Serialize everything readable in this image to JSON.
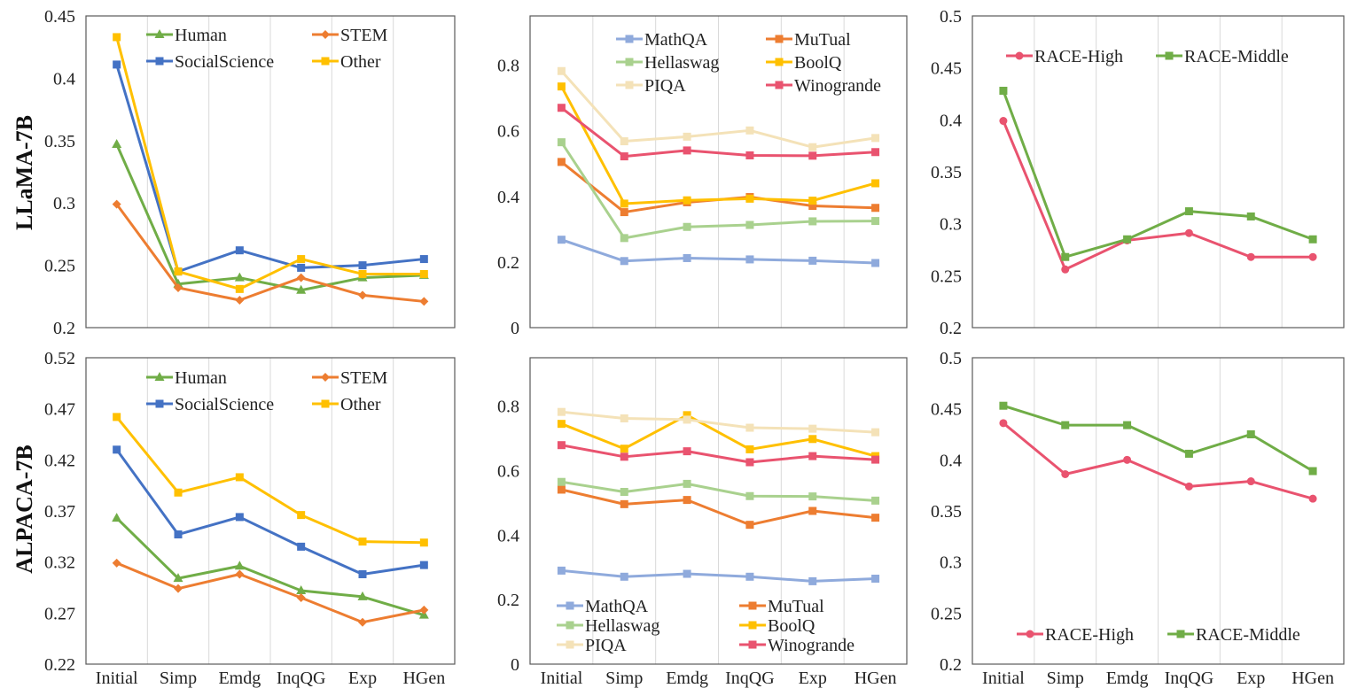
{
  "row_labels": [
    "LLaMA-7B",
    "ALPACA-7B"
  ],
  "chart_data": [
    {
      "id": "llama-mmlu",
      "type": "line",
      "categories": [
        "Initial",
        "Simp",
        "Emdg",
        "InqQG",
        "Exp",
        "HGen"
      ],
      "yticks": [
        "0.2",
        "0.25",
        "0.3",
        "0.35",
        "0.4",
        "0.45"
      ],
      "ylim": [
        0.2,
        0.45
      ],
      "grid": "vertical",
      "legend_placement": "top",
      "series": [
        {
          "name": "Human",
          "color": "#70ad47",
          "marker": "triangle",
          "values": [
            0.347,
            0.235,
            0.24,
            0.23,
            0.24,
            0.242
          ]
        },
        {
          "name": "STEM",
          "color": "#ed7d31",
          "marker": "diamond",
          "values": [
            0.299,
            0.232,
            0.222,
            0.24,
            0.226,
            0.221
          ]
        },
        {
          "name": "SocialScience",
          "color": "#4472c4",
          "marker": "square",
          "values": [
            0.411,
            0.245,
            0.262,
            0.248,
            0.25,
            0.255
          ]
        },
        {
          "name": "Other",
          "color": "#ffc000",
          "marker": "square",
          "values": [
            0.433,
            0.245,
            0.231,
            0.255,
            0.243,
            0.243
          ]
        }
      ]
    },
    {
      "id": "llama-others",
      "type": "line",
      "categories": [
        "Initial",
        "Simp",
        "Emdg",
        "InqQG",
        "Exp",
        "HGen"
      ],
      "yticks": [
        "0",
        "0.2",
        "0.4",
        "0.6",
        "0.8"
      ],
      "ylim": [
        0,
        0.95
      ],
      "grid": "vertical",
      "legend_placement": "top",
      "series": [
        {
          "name": "MathQA",
          "color": "#8faadc",
          "marker": "square",
          "values": [
            0.268,
            0.203,
            0.212,
            0.208,
            0.204,
            0.197
          ]
        },
        {
          "name": "MuTual",
          "color": "#ed7d31",
          "marker": "square",
          "values": [
            0.505,
            0.352,
            0.382,
            0.398,
            0.371,
            0.365
          ]
        },
        {
          "name": "Hellaswag",
          "color": "#a9d18e",
          "marker": "square",
          "values": [
            0.565,
            0.273,
            0.307,
            0.313,
            0.324,
            0.325
          ]
        },
        {
          "name": "BoolQ",
          "color": "#ffc000",
          "marker": "square",
          "values": [
            0.735,
            0.378,
            0.388,
            0.393,
            0.387,
            0.44
          ]
        },
        {
          "name": "PIQA",
          "color": "#f4e2b8",
          "marker": "square",
          "values": [
            0.782,
            0.568,
            0.582,
            0.601,
            0.55,
            0.578
          ]
        },
        {
          "name": "Winogrande",
          "color": "#e9536f",
          "marker": "square",
          "values": [
            0.67,
            0.522,
            0.54,
            0.525,
            0.524,
            0.535
          ]
        }
      ]
    },
    {
      "id": "llama-race",
      "type": "line",
      "categories": [
        "Initial",
        "Simp",
        "Emdg",
        "InqQG",
        "Exp",
        "HGen"
      ],
      "yticks": [
        "0.2",
        "0.25",
        "0.3",
        "0.35",
        "0.4",
        "0.45",
        "0.5"
      ],
      "ylim": [
        0.2,
        0.5
      ],
      "grid": "vertical",
      "legend_placement": "top",
      "series": [
        {
          "name": "RACE-High",
          "color": "#e9536f",
          "marker": "circle",
          "values": [
            0.399,
            0.256,
            0.284,
            0.291,
            0.268,
            0.268
          ]
        },
        {
          "name": "RACE-Middle",
          "color": "#70ad47",
          "marker": "square",
          "values": [
            0.428,
            0.268,
            0.285,
            0.312,
            0.307,
            0.285
          ]
        }
      ]
    },
    {
      "id": "alpaca-mmlu",
      "type": "line",
      "categories": [
        "Initial",
        "Simp",
        "Emdg",
        "InqQG",
        "Exp",
        "HGen"
      ],
      "yticks": [
        "0.22",
        "0.27",
        "0.32",
        "0.37",
        "0.42",
        "0.47",
        "0.52"
      ],
      "ylim": [
        0.22,
        0.52
      ],
      "grid": "vertical",
      "legend_placement": "top",
      "series": [
        {
          "name": "Human",
          "color": "#70ad47",
          "marker": "triangle",
          "values": [
            0.363,
            0.304,
            0.316,
            0.292,
            0.286,
            0.268
          ]
        },
        {
          "name": "STEM",
          "color": "#ed7d31",
          "marker": "diamond",
          "values": [
            0.319,
            0.294,
            0.308,
            0.285,
            0.261,
            0.273
          ]
        },
        {
          "name": "SocialScience",
          "color": "#4472c4",
          "marker": "square",
          "values": [
            0.43,
            0.347,
            0.364,
            0.335,
            0.308,
            0.317
          ]
        },
        {
          "name": "Other",
          "color": "#ffc000",
          "marker": "square",
          "values": [
            0.462,
            0.388,
            0.403,
            0.366,
            0.34,
            0.339
          ]
        }
      ]
    },
    {
      "id": "alpaca-others",
      "type": "line",
      "categories": [
        "Initial",
        "Simp",
        "Emdg",
        "InqQG",
        "Exp",
        "HGen"
      ],
      "yticks": [
        "0",
        "0.2",
        "0.4",
        "0.6",
        "0.8"
      ],
      "ylim": [
        0,
        0.95
      ],
      "grid": "vertical",
      "legend_placement": "bottom",
      "series": [
        {
          "name": "MathQA",
          "color": "#8faadc",
          "marker": "square",
          "values": [
            0.29,
            0.271,
            0.28,
            0.271,
            0.257,
            0.265
          ]
        },
        {
          "name": "MuTual",
          "color": "#ed7d31",
          "marker": "square",
          "values": [
            0.541,
            0.496,
            0.509,
            0.432,
            0.475,
            0.454
          ]
        },
        {
          "name": "Hellaswag",
          "color": "#a9d18e",
          "marker": "square",
          "values": [
            0.565,
            0.534,
            0.559,
            0.521,
            0.52,
            0.507
          ]
        },
        {
          "name": "BoolQ",
          "color": "#ffc000",
          "marker": "square",
          "values": [
            0.745,
            0.668,
            0.772,
            0.666,
            0.698,
            0.645
          ]
        },
        {
          "name": "PIQA",
          "color": "#f4e2b8",
          "marker": "square",
          "values": [
            0.782,
            0.762,
            0.758,
            0.733,
            0.73,
            0.719
          ]
        },
        {
          "name": "Winogrande",
          "color": "#e9536f",
          "marker": "square",
          "values": [
            0.679,
            0.643,
            0.66,
            0.626,
            0.645,
            0.634
          ]
        }
      ]
    },
    {
      "id": "alpaca-race",
      "type": "line",
      "categories": [
        "Initial",
        "Simp",
        "Emdg",
        "InqQG",
        "Exp",
        "HGen"
      ],
      "yticks": [
        "0.2",
        "0.25",
        "0.3",
        "0.35",
        "0.4",
        "0.45",
        "0.5"
      ],
      "ylim": [
        0.2,
        0.5
      ],
      "grid": "vertical",
      "legend_placement": "bottom",
      "series": [
        {
          "name": "RACE-High",
          "color": "#e9536f",
          "marker": "circle",
          "values": [
            0.436,
            0.386,
            0.4,
            0.374,
            0.379,
            0.362
          ]
        },
        {
          "name": "RACE-Middle",
          "color": "#70ad47",
          "marker": "square",
          "values": [
            0.453,
            0.434,
            0.434,
            0.406,
            0.425,
            0.389
          ]
        }
      ]
    }
  ]
}
